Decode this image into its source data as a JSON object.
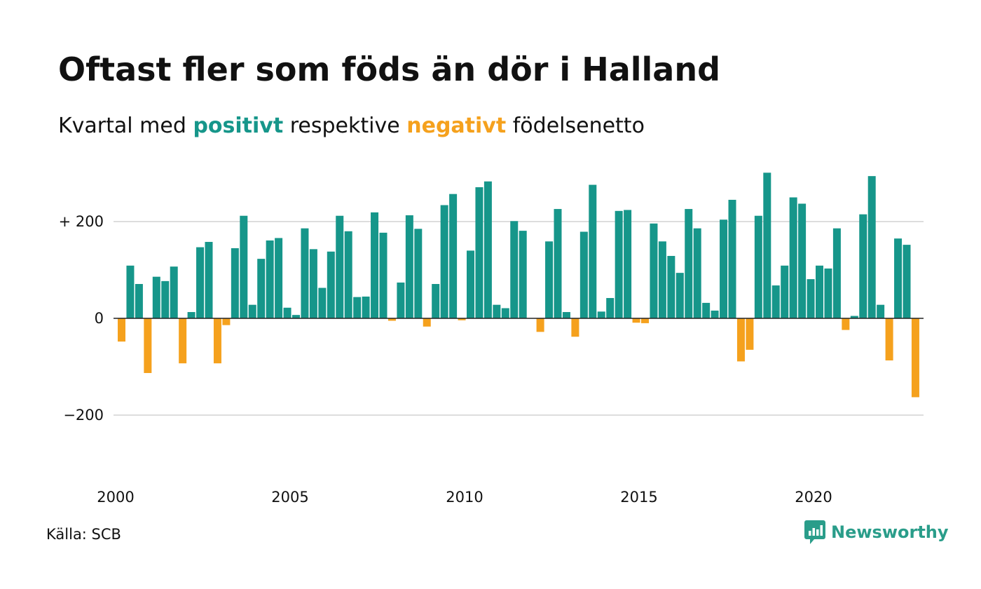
{
  "title": "Oftast fler som föds än dör i Halland",
  "subtitle": {
    "prefix": "Kvartal med",
    "positive_word": "positivt",
    "middle": "respektive",
    "negative_word": "negativt",
    "suffix": "födelsenetto"
  },
  "source": "Källa: SCB",
  "brand": {
    "name": "Newsworthy",
    "icon": "newsworthy-logo-icon"
  },
  "colors": {
    "positive": "#16968a",
    "negative": "#f5a11d",
    "text": "#111111",
    "grid": "#dddddd"
  },
  "chart_data": {
    "type": "bar",
    "ylim": [
      -300,
      300
    ],
    "yticks": [
      {
        "value": 200,
        "label": "+ 200"
      },
      {
        "value": 0,
        "label": "0"
      },
      {
        "value": -200,
        "label": "−200"
      }
    ],
    "xticks": [
      {
        "year": 2000,
        "label": "2000"
      },
      {
        "year": 2005,
        "label": "2005"
      },
      {
        "year": 2010,
        "label": "2010"
      },
      {
        "year": 2015,
        "label": "2015"
      },
      {
        "year": 2020,
        "label": "2020"
      }
    ],
    "start_year": 2000,
    "start_quarter": 1,
    "grid": true,
    "values": [
      -48,
      109,
      71,
      -113,
      86,
      77,
      107,
      -93,
      13,
      147,
      158,
      -93,
      -14,
      145,
      212,
      28,
      123,
      161,
      166,
      22,
      7,
      186,
      143,
      63,
      138,
      212,
      180,
      44,
      45,
      219,
      177,
      -5,
      74,
      213,
      185,
      -17,
      71,
      234,
      257,
      -4,
      140,
      271,
      283,
      28,
      21,
      201,
      181,
      0,
      -28,
      159,
      226,
      13,
      -38,
      179,
      276,
      14,
      42,
      222,
      224,
      -9,
      -10,
      196,
      159,
      129,
      94,
      226,
      186,
      32,
      16,
      204,
      245,
      -89,
      -65,
      212,
      301,
      68,
      109,
      250,
      237,
      81,
      109,
      103,
      186,
      -24,
      5,
      215,
      294,
      28,
      -87,
      165,
      152,
      -163
    ]
  }
}
